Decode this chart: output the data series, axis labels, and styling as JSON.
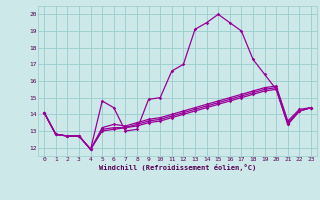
{
  "xlabel": "Windchill (Refroidissement éolien,°C)",
  "bg_color": "#cce8e8",
  "grid_color": "#99cccc",
  "line_color": "#990099",
  "x_ticks": [
    0,
    1,
    2,
    3,
    4,
    5,
    6,
    7,
    8,
    9,
    10,
    11,
    12,
    13,
    14,
    15,
    16,
    17,
    18,
    19,
    20,
    21,
    22,
    23
  ],
  "y_ticks": [
    12,
    13,
    14,
    15,
    16,
    17,
    18,
    19,
    20
  ],
  "ylim": [
    11.5,
    20.5
  ],
  "xlim": [
    -0.5,
    23.5
  ],
  "series": [
    [
      14.1,
      12.8,
      12.7,
      12.7,
      11.9,
      14.8,
      14.4,
      13.0,
      13.1,
      14.9,
      15.0,
      16.6,
      17.0,
      19.1,
      19.5,
      20.0,
      19.5,
      19.0,
      17.3,
      16.4,
      15.5,
      13.4,
      14.2,
      14.4
    ],
    [
      14.1,
      12.8,
      12.7,
      12.7,
      11.9,
      13.0,
      13.1,
      13.2,
      13.3,
      13.5,
      13.6,
      13.8,
      14.0,
      14.2,
      14.4,
      14.6,
      14.8,
      15.0,
      15.2,
      15.4,
      15.5,
      13.4,
      14.2,
      14.4
    ],
    [
      14.1,
      12.8,
      12.7,
      12.7,
      11.9,
      13.1,
      13.2,
      13.2,
      13.4,
      13.6,
      13.7,
      13.9,
      14.1,
      14.3,
      14.5,
      14.7,
      14.9,
      15.1,
      15.3,
      15.5,
      15.6,
      13.5,
      14.2,
      14.4
    ],
    [
      14.1,
      12.8,
      12.7,
      12.7,
      11.9,
      13.2,
      13.4,
      13.3,
      13.5,
      13.7,
      13.8,
      14.0,
      14.2,
      14.4,
      14.6,
      14.8,
      15.0,
      15.2,
      15.4,
      15.6,
      15.7,
      13.6,
      14.3,
      14.4
    ]
  ]
}
